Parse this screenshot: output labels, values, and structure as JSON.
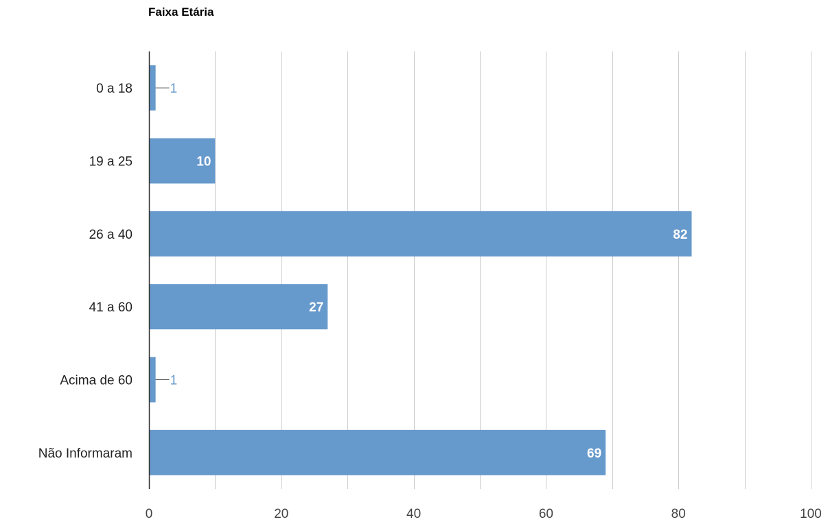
{
  "chart_data": {
    "type": "bar",
    "orientation": "horizontal",
    "title": "Faixa Etária",
    "xlabel": "",
    "ylabel": "",
    "categories": [
      "0 a 18",
      "19 a 25",
      "26 a 40",
      "41 a 60",
      "Acima de 60",
      "Não Informaram"
    ],
    "values": [
      1,
      10,
      82,
      27,
      1,
      69
    ],
    "xlim": [
      0,
      100
    ],
    "x_ticks": [
      0,
      20,
      40,
      60,
      80,
      100
    ],
    "grid": true,
    "legend": "none",
    "colors": {
      "bar": "#6699cc",
      "grid": "#cccccc",
      "axis": "#333333",
      "label_inside": "#ffffff",
      "label_outside": "#6699cc"
    }
  }
}
